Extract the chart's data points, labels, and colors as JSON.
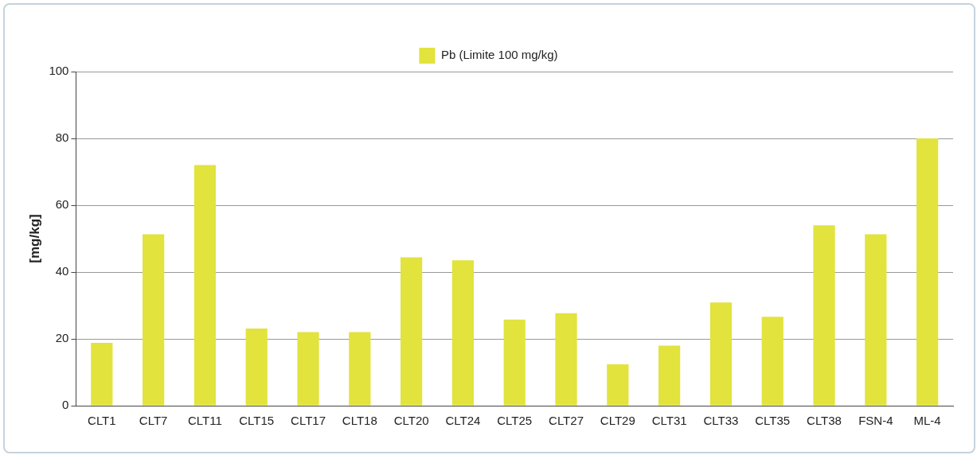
{
  "chart_data": {
    "type": "bar",
    "ylabel": "[mg/kg]",
    "categories": [
      "CLT1",
      "CLT7",
      "CLT11",
      "CLT15",
      "CLT17",
      "CLT18",
      "CLT20",
      "CLT24",
      "CLT25",
      "CLT27",
      "CLT29",
      "CLT31",
      "CLT33",
      "CLT35",
      "CLT38",
      "FSN-4",
      "ML-4"
    ],
    "series": [
      {
        "name": "Pb (Limite 100 mg/kg)",
        "color": "#e2e33d",
        "values": [
          18.8,
          51.3,
          72,
          23.1,
          22,
          22,
          44.4,
          43.5,
          25.8,
          27.7,
          12.4,
          18,
          30.9,
          26.6,
          54,
          51.3,
          80
        ]
      }
    ],
    "ylim": [
      0,
      100
    ],
    "yticks": [
      0,
      20,
      40,
      60,
      80,
      100
    ],
    "grid": "y",
    "legend": "top"
  }
}
